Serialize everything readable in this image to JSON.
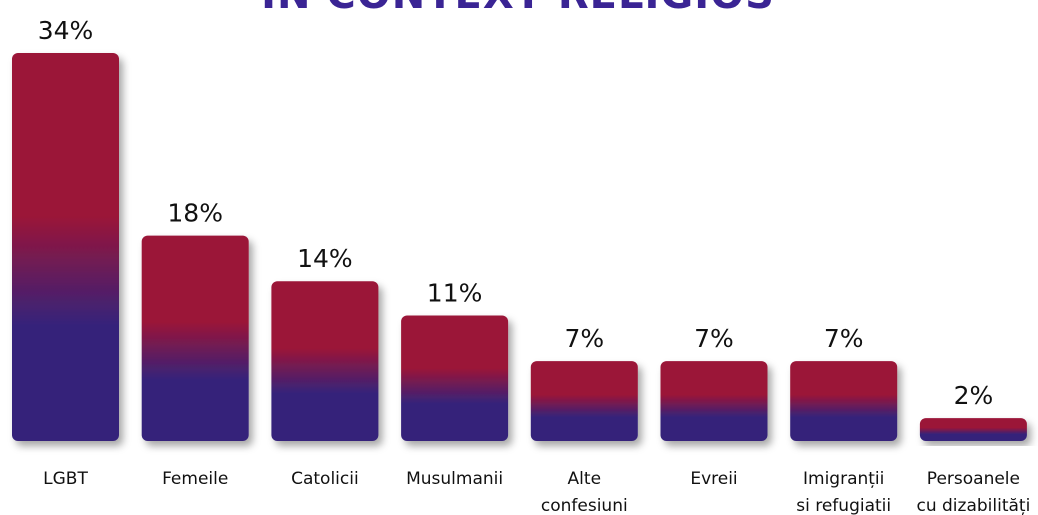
{
  "chart_data": {
    "type": "bar",
    "title": "IN CONTEXT RELIGIOS",
    "xlabel": "",
    "ylabel": "",
    "ylim": [
      0,
      34
    ],
    "grid": false,
    "legend": "none",
    "unit": "%",
    "categories": [
      [
        "LGBT"
      ],
      [
        "Femeile"
      ],
      [
        "Catolicii"
      ],
      [
        "Musulmanii"
      ],
      [
        "Alte",
        "confesiuni"
      ],
      [
        "Evreii"
      ],
      [
        "Imigranții",
        "si refugiatii"
      ],
      [
        "Persoanele",
        "cu dizabilități"
      ]
    ],
    "values": [
      34,
      18,
      14,
      11,
      7,
      7,
      7,
      2
    ],
    "value_labels": [
      "34%",
      "18%",
      "14%",
      "11%",
      "7%",
      "7%",
      "7%",
      "2%"
    ]
  },
  "colors": {
    "bar_top": "#9b1538",
    "bar_bottom": "#36237a",
    "title": "#3a2494",
    "text": "#111111"
  }
}
